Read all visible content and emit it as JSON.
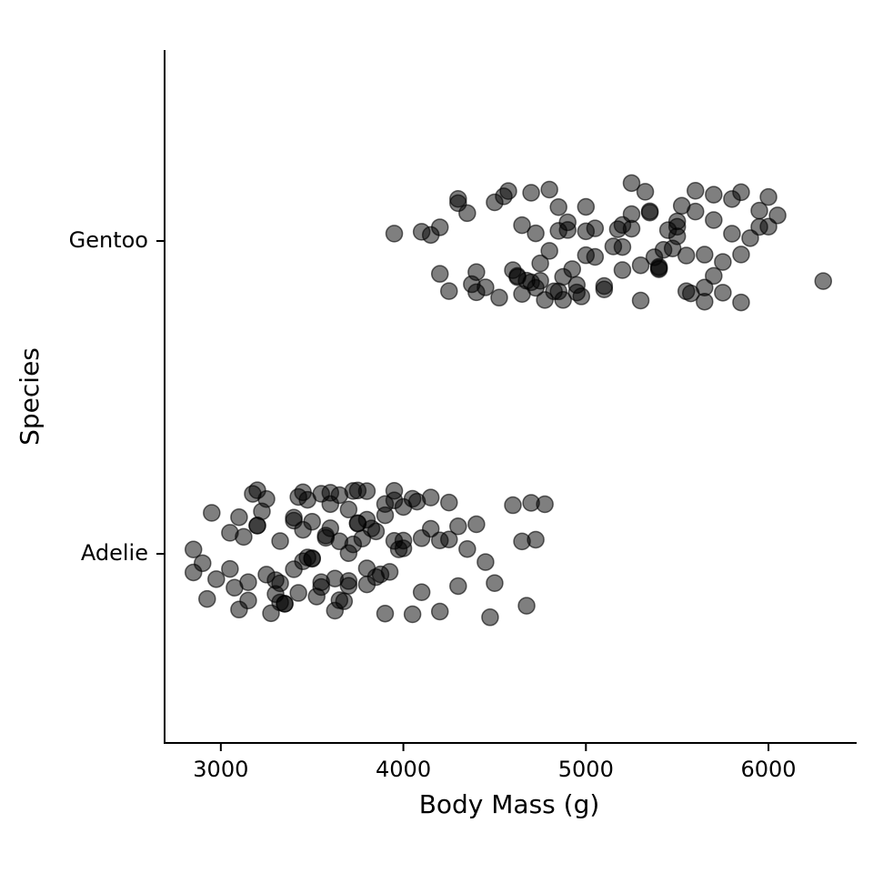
{
  "chart_data": {
    "type": "strip",
    "x_label": "Body Mass (g)",
    "y_label": "Species",
    "categories": [
      "Adelie",
      "Gentoo"
    ],
    "values": [
      [
        2850,
        2900,
        2925,
        2975,
        3050,
        3075,
        3100,
        3125,
        3150,
        3175,
        3200,
        3200,
        3225,
        3250,
        3275,
        3300,
        3300,
        3325,
        3350,
        3400,
        3400,
        3425,
        3450,
        3450,
        3475,
        3500,
        3500,
        3525,
        3550,
        3550,
        3575,
        3600,
        3600,
        3625,
        3650,
        3650,
        3675,
        3700,
        3700,
        3700,
        3725,
        3750,
        3750,
        3775,
        3800,
        3800,
        3800,
        3825,
        3850,
        3875,
        3900,
        3900,
        3950,
        3950,
        3975,
        4000,
        4000,
        4050,
        4075,
        4100,
        4150,
        4200,
        4250,
        4250,
        4300,
        4350,
        4400,
        4450,
        4475,
        4500,
        4600,
        4650,
        4675,
        4700,
        4725,
        4775,
        3050,
        3100,
        3200,
        3250,
        3325,
        3350,
        3400,
        3450,
        3500,
        3550,
        3600,
        3650,
        3700,
        3750,
        3800,
        3900,
        3950,
        4000,
        4100,
        4200,
        4300,
        3150,
        3325,
        3425,
        3475,
        3575,
        3625,
        3725,
        3850,
        3925,
        4050,
        4150,
        2850,
        2950
      ],
      [
        3950,
        4100,
        4150,
        4200,
        4250,
        4300,
        4350,
        4400,
        4400,
        4450,
        4500,
        4550,
        4575,
        4600,
        4625,
        4650,
        4650,
        4700,
        4700,
        4725,
        4750,
        4750,
        4775,
        4800,
        4800,
        4850,
        4850,
        4875,
        4900,
        4900,
        4925,
        4950,
        5000,
        5000,
        5050,
        5050,
        5100,
        5150,
        5200,
        5200,
        5250,
        5250,
        5300,
        5300,
        5350,
        5350,
        5400,
        5400,
        5450,
        5500,
        5500,
        5550,
        5550,
        5600,
        5650,
        5650,
        5700,
        5700,
        5750,
        5800,
        5800,
        5850,
        5850,
        5950,
        5950,
        6000,
        6000,
        6050,
        6300,
        4200,
        4375,
        4525,
        4625,
        4675,
        4725,
        4825,
        4875,
        4975,
        5100,
        5175,
        5250,
        5325,
        5375,
        5425,
        5475,
        5525,
        5575,
        5650,
        5700,
        5750,
        5850,
        5900,
        4850,
        4950,
        5000,
        5200,
        5400,
        5500,
        5600,
        4300
      ]
    ],
    "color": "#000000",
    "xlim": [
      2692,
      6473
    ],
    "xticks": [
      3000,
      4000,
      5000,
      6000
    ]
  }
}
